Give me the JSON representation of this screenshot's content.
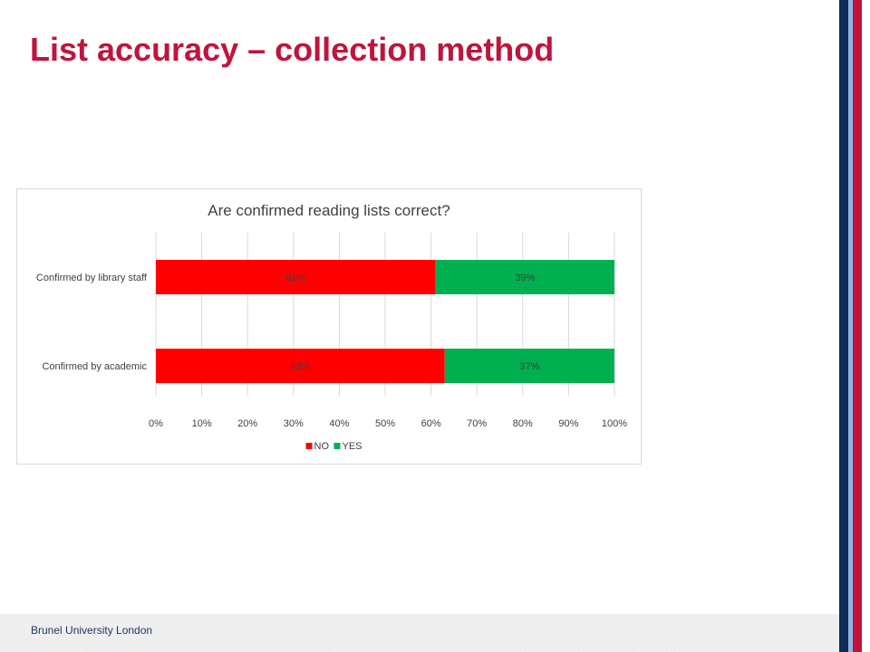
{
  "slide": {
    "title": "List accuracy – collection method",
    "footer": "Brunel University London"
  },
  "colors": {
    "title": "#c0143c",
    "no": "#ff0000",
    "yes": "#00b050",
    "stripe_navy": "#0f2d5a",
    "stripe_red": "#c0143c",
    "stripe_lightblue": "#8fb4e3"
  },
  "chart_data": {
    "type": "bar",
    "orientation": "horizontal",
    "stacked": true,
    "title": "Are confirmed reading lists correct?",
    "categories": [
      "Confirmed by library staff",
      "Confirmed by academic"
    ],
    "series": [
      {
        "name": "NO",
        "values": [
          61,
          63
        ],
        "labels": [
          "61%",
          "63%"
        ],
        "color": "#ff0000"
      },
      {
        "name": "YES",
        "values": [
          39,
          37
        ],
        "labels": [
          "39%",
          "37%"
        ],
        "color": "#00b050"
      }
    ],
    "xlim": [
      0,
      100
    ],
    "xticks": [
      "0%",
      "10%",
      "20%",
      "30%",
      "40%",
      "50%",
      "60%",
      "70%",
      "80%",
      "90%",
      "100%"
    ],
    "grid": true,
    "legend": "bottom"
  }
}
